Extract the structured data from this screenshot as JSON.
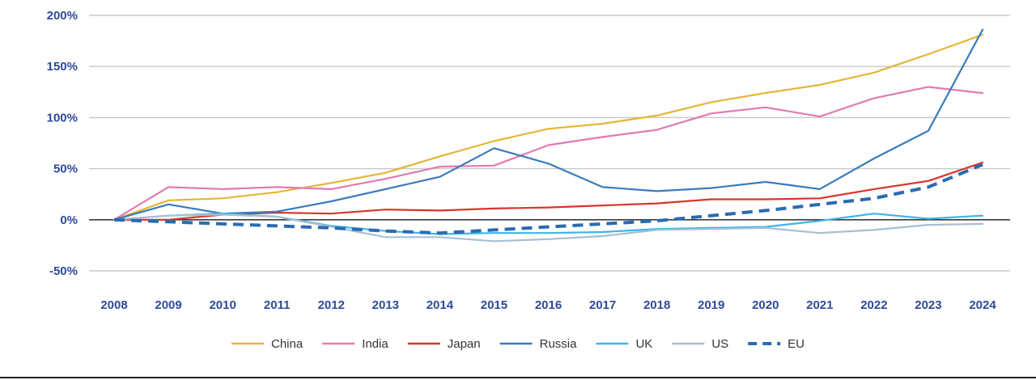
{
  "chart_data": {
    "type": "line",
    "title": "",
    "xlabel": "",
    "ylabel": "",
    "x": [
      "2008",
      "2009",
      "2010",
      "2011",
      "2012",
      "2013",
      "2014",
      "2015",
      "2016",
      "2017",
      "2018",
      "2019",
      "2020",
      "2021",
      "2022",
      "2023",
      "2024"
    ],
    "ylim": [
      -50,
      200
    ],
    "yticks": [
      200,
      150,
      100,
      50,
      0,
      -50
    ],
    "ytick_labels": [
      "200%",
      "150%",
      "100%",
      "50%",
      "0%",
      "-50%"
    ],
    "grid": true,
    "legend_position": "bottom-center",
    "series": [
      {
        "name": "China",
        "color": "#e5b535",
        "dashed": false,
        "values": [
          0,
          19,
          21,
          27,
          36,
          46,
          62,
          77,
          89,
          94,
          102,
          115,
          124,
          132,
          144,
          162,
          181
        ]
      },
      {
        "name": "India",
        "color": "#e27ab3",
        "dashed": false,
        "values": [
          0,
          32,
          30,
          32,
          30,
          40,
          52,
          53,
          73,
          81,
          88,
          104,
          110,
          101,
          119,
          130,
          124
        ]
      },
      {
        "name": "Japan",
        "color": "#d9342b",
        "dashed": false,
        "values": [
          0,
          0,
          5,
          7,
          6,
          10,
          9,
          11,
          12,
          14,
          16,
          20,
          20,
          21,
          30,
          38,
          56
        ]
      },
      {
        "name": "Russia",
        "color": "#3a7bbd",
        "dashed": false,
        "values": [
          0,
          15,
          6,
          8,
          18,
          30,
          42,
          70,
          55,
          32,
          28,
          31,
          37,
          30,
          60,
          87,
          186
        ]
      },
      {
        "name": "UK",
        "color": "#3db5e6",
        "dashed": false,
        "values": [
          0,
          4,
          6,
          3,
          -6,
          -11,
          -14,
          -13,
          -13,
          -12,
          -9,
          -8,
          -7,
          -1,
          6,
          1,
          4
        ]
      },
      {
        "name": "US",
        "color": "#a8bfd3",
        "dashed": false,
        "values": [
          0,
          4,
          5,
          3,
          -7,
          -17,
          -17,
          -21,
          -19,
          -16,
          -10,
          -9,
          -8,
          -13,
          -10,
          -5,
          -4
        ]
      },
      {
        "name": "EU",
        "color": "#2a6bb0",
        "dashed": true,
        "values": [
          0,
          -2,
          -4,
          -6,
          -8,
          -11,
          -13,
          -10,
          -7,
          -4,
          -1,
          4,
          9,
          15,
          21,
          32,
          54
        ]
      }
    ]
  }
}
